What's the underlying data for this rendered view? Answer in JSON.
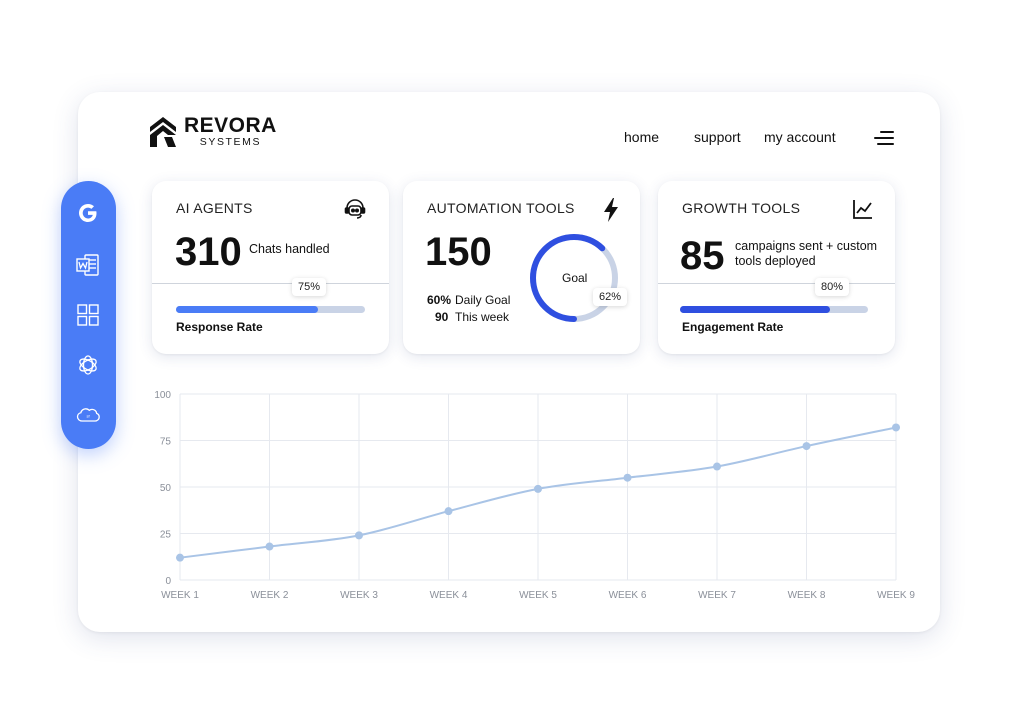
{
  "brand": {
    "name": "REVORA",
    "sub": "SYSTEMS"
  },
  "nav": {
    "home": "home",
    "support": "support",
    "account": "my account",
    "menu_icon": "hamburger-menu-icon"
  },
  "sidebar": {
    "color": "#4a7cf6",
    "items": [
      {
        "icon": "google-icon"
      },
      {
        "icon": "word-icon"
      },
      {
        "icon": "apps-grid-icon"
      },
      {
        "icon": "openai-icon"
      },
      {
        "icon": "salesforce-icon"
      }
    ]
  },
  "cards": {
    "ai_agents": {
      "title": "AI AGENTS",
      "icon": "headset-bot-icon",
      "value": "310",
      "value_label": "Chats handled",
      "progress": 0.75,
      "progress_label": "75%",
      "bar_label": "Response Rate",
      "bar_color": "#4a7cf6"
    },
    "automation": {
      "title": "AUTOMATION TOOLS",
      "icon": "lightning-icon",
      "value": "150",
      "goal_pct": "60%",
      "goal_label": "Daily Goal",
      "week_value": "90",
      "week_label": "This week",
      "ring_label": "Goal",
      "ring_progress": 0.62,
      "ring_pct": "62%",
      "ring_color": "#2f4fe0"
    },
    "growth": {
      "title": "GROWTH TOOLS",
      "icon": "line-chart-icon",
      "value": "85",
      "value_label_1": "campaigns sent + custom",
      "value_label_2": "tools deployed",
      "progress": 0.8,
      "progress_label": "80%",
      "bar_label": "Engagement Rate",
      "bar_color": "#2f4fe0"
    }
  },
  "chart_data": {
    "type": "line",
    "x": [
      "WEEK 1",
      "WEEK 2",
      "WEEK 3",
      "WEEK 4",
      "WEEK 5",
      "WEEK 6",
      "WEEK 7",
      "WEEK 8",
      "WEEK 9"
    ],
    "series": [
      {
        "values": [
          12,
          18,
          24,
          37,
          49,
          55,
          61,
          72,
          82
        ]
      }
    ],
    "ylim": [
      0,
      100
    ],
    "yticks": [
      "0",
      "25",
      "50",
      "75",
      "100"
    ],
    "grid": true,
    "line_color": "#a9c4e6"
  }
}
